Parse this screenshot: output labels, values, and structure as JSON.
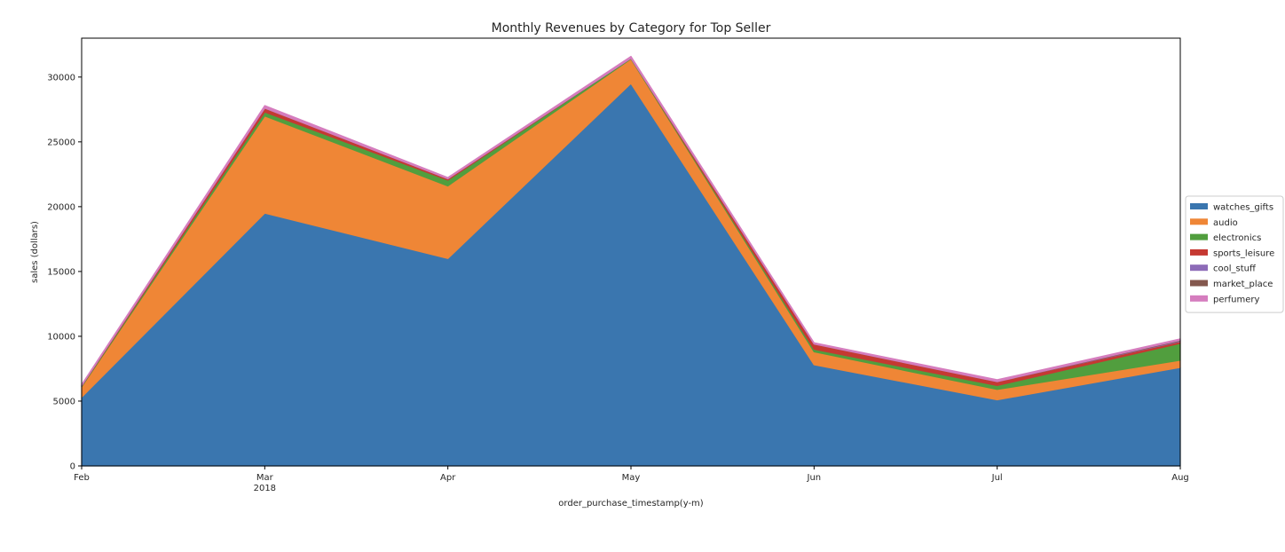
{
  "chart_data": {
    "type": "area",
    "stacked": true,
    "title": "Monthly Revenues by Category for Top Seller",
    "xlabel": "order_purchase_timestamp(y-m)",
    "ylabel": "sales (dollars)",
    "categories": [
      "Feb",
      "Mar",
      "Apr",
      "May",
      "Jun",
      "Jul",
      "Aug"
    ],
    "x_tick_sublabels": [
      "",
      "2018",
      "",
      "",
      "",
      "",
      ""
    ],
    "yticks": [
      0,
      5000,
      10000,
      15000,
      20000,
      25000,
      30000
    ],
    "ylim": [
      0,
      33000
    ],
    "grid": false,
    "legend_position": "right",
    "series": [
      {
        "name": "watches_gifts",
        "color": "#3a76af",
        "values": [
          5300,
          19500,
          16000,
          29500,
          7800,
          5100,
          7600
        ]
      },
      {
        "name": "audio",
        "color": "#ef8636",
        "values": [
          800,
          7500,
          5600,
          1900,
          1000,
          800,
          550
        ]
      },
      {
        "name": "electronics",
        "color": "#519e3e",
        "values": [
          50,
          300,
          450,
          50,
          200,
          300,
          1300
        ]
      },
      {
        "name": "sports_leisure",
        "color": "#c53932",
        "values": [
          30,
          300,
          100,
          0,
          400,
          300,
          150
        ]
      },
      {
        "name": "cool_stuff",
        "color": "#8d6bb8",
        "values": [
          0,
          0,
          0,
          0,
          0,
          0,
          50
        ]
      },
      {
        "name": "market_place",
        "color": "#84584e",
        "values": [
          0,
          0,
          0,
          0,
          0,
          0,
          50
        ]
      },
      {
        "name": "perfumery",
        "color": "#d57dbe",
        "values": [
          100,
          200,
          100,
          150,
          100,
          150,
          100
        ]
      }
    ]
  }
}
